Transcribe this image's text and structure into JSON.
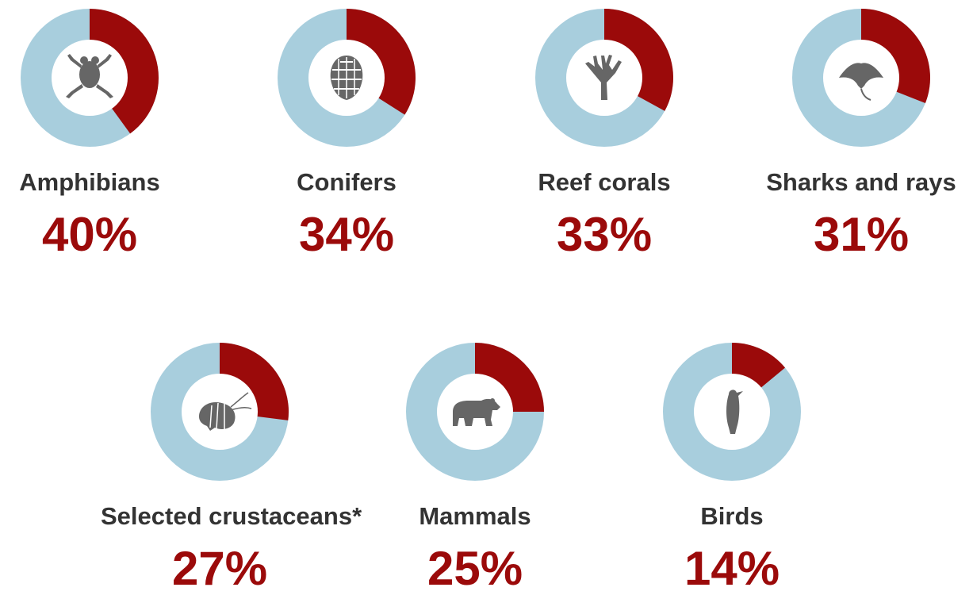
{
  "chart_data": {
    "type": "pie",
    "colors": {
      "threatened": "#9b0a0a",
      "remaining": "#a8cedd",
      "hole": "#ffffff",
      "icon": "#666666"
    },
    "items": [
      {
        "label": "Amphibians",
        "value": 40,
        "value_label": "40%",
        "icon": "frog-icon"
      },
      {
        "label": "Conifers",
        "value": 34,
        "value_label": "34%",
        "icon": "pine-cone-icon"
      },
      {
        "label": "Reef corals",
        "value": 33,
        "value_label": "33%",
        "icon": "coral-icon"
      },
      {
        "label": "Sharks and rays",
        "value": 31,
        "value_label": "31%",
        "icon": "manta-ray-icon"
      },
      {
        "label": "Selected crustaceans*",
        "value": 27,
        "value_label": "27%",
        "icon": "shrimp-icon"
      },
      {
        "label": "Mammals",
        "value": 25,
        "value_label": "25%",
        "icon": "bear-icon"
      },
      {
        "label": "Birds",
        "value": 14,
        "value_label": "14%",
        "icon": "bird-icon"
      }
    ]
  }
}
